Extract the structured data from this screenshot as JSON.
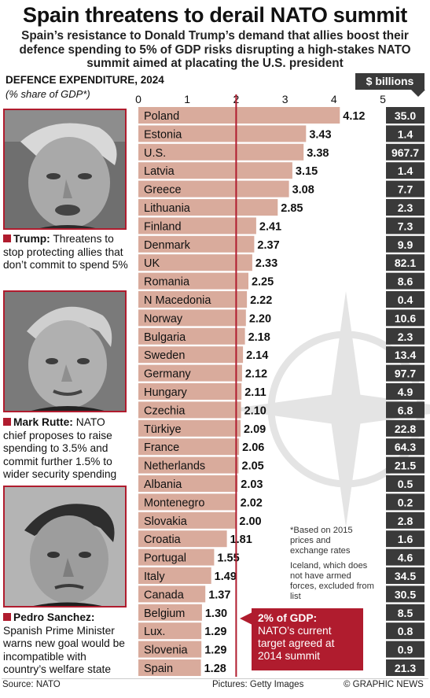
{
  "title": "Spain threatens to derail NATO summit",
  "subtitle": "Spain’s resistance to Donald Trump’s demand that allies boost their defence spending to 5% of GDP risks disrupting a high-stakes NATO summit aimed at placating the U.S. president",
  "section_label": "DEFENCE EXPENDITURE, 2024",
  "section_sublabel": "(% share of GDP*)",
  "billions_label": "$ billions",
  "profiles": [
    {
      "name": "Trump:",
      "text": "Threatens to stop protecting allies that don’t commit to spend 5%"
    },
    {
      "name": "Mark Rutte:",
      "text": "NATO chief proposes to raise spending to 3.5% and commit further 1.5% to wider security spending"
    },
    {
      "name": "Pedro Sanchez:",
      "text": "Spanish Prime Minister warns new goal would be incompatible with country’s welfare state"
    }
  ],
  "notes": {
    "based_on": "*Based on 2015 prices and exchange rates",
    "iceland": "Iceland, which does not have armed forces, excluded from list"
  },
  "callout": {
    "title": "2% of GDP:",
    "text": "NATO’s current target agreed at 2014 summit"
  },
  "footer": {
    "source": "Source: NATO",
    "pictures": "Pictures: Getty Images",
    "credit": "© GRAPHIC NEWS"
  },
  "colors": {
    "bar": "#d9ab9c",
    "accent": "#b01c2e",
    "dark_box": "#3a3a3a",
    "target_line": "#b01c2e",
    "emblem": "#e4e4e4"
  },
  "chart_data": {
    "type": "bar",
    "orientation": "horizontal",
    "xlim": [
      0,
      5
    ],
    "ticks": [
      "0",
      "1",
      "2",
      "3",
      "4",
      "5"
    ],
    "target_line": 2,
    "categories": [
      "Poland",
      "Estonia",
      "U.S.",
      "Latvia",
      "Greece",
      "Lithuania",
      "Finland",
      "Denmark",
      "UK",
      "Romania",
      "N Macedonia",
      "Norway",
      "Bulgaria",
      "Sweden",
      "Germany",
      "Hungary",
      "Czechia",
      "Türkiye",
      "France",
      "Netherlands",
      "Albania",
      "Montenegro",
      "Slovakia",
      "Croatia",
      "Portugal",
      "Italy",
      "Canada",
      "Belgium",
      "Lux.",
      "Slovenia",
      "Spain"
    ],
    "values": [
      4.12,
      3.43,
      3.38,
      3.15,
      3.08,
      2.85,
      2.41,
      2.37,
      2.33,
      2.25,
      2.22,
      2.2,
      2.18,
      2.14,
      2.12,
      2.11,
      2.1,
      2.09,
      2.06,
      2.05,
      2.03,
      2.02,
      2.0,
      1.81,
      1.55,
      1.49,
      1.37,
      1.3,
      1.29,
      1.29,
      1.28
    ],
    "value_labels": [
      "4.12",
      "3.43",
      "3.38",
      "3.15",
      "3.08",
      "2.85",
      "2.41",
      "2.37",
      "2.33",
      "2.25",
      "2.22",
      "2.20",
      "2.18",
      "2.14",
      "2.12",
      "2.11",
      "2.10",
      "2.09",
      "2.06",
      "2.05",
      "2.03",
      "2.02",
      "2.00",
      "1.81",
      "1.55",
      "1.49",
      "1.37",
      "1.30",
      "1.29",
      "1.29",
      "1.28"
    ],
    "billions": [
      "35.0",
      "1.4",
      "967.7",
      "1.4",
      "7.7",
      "2.3",
      "7.3",
      "9.9",
      "82.1",
      "8.6",
      "0.4",
      "10.6",
      "2.3",
      "13.4",
      "97.7",
      "4.9",
      "6.8",
      "22.8",
      "64.3",
      "21.5",
      "0.5",
      "0.2",
      "2.8",
      "1.6",
      "4.6",
      "34.5",
      "30.5",
      "8.5",
      "0.8",
      "0.9",
      "21.3"
    ]
  }
}
